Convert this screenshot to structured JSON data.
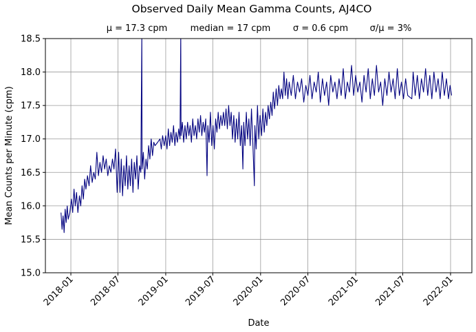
{
  "chart_data": {
    "type": "line",
    "title": "Observed Daily Mean Gamma Counts, AJ4CO",
    "subtitle": [
      "μ = 17.3 cpm",
      "median = 17 cpm",
      "σ = 0.6 cpm",
      "σ/μ = 3%"
    ],
    "xlabel": "Date",
    "ylabel": "Mean Counts per Minute (cpm)",
    "xlim": [
      "2017-09-25",
      "2022-03-24"
    ],
    "ylim": [
      15.0,
      18.5
    ],
    "xticks": [
      "2018-01",
      "2018-07",
      "2019-01",
      "2019-07",
      "2020-01",
      "2020-07",
      "2021-01",
      "2021-07",
      "2022-01"
    ],
    "yticks": [
      "15.0",
      "15.5",
      "16.0",
      "16.5",
      "17.0",
      "17.5",
      "18.0",
      "18.5"
    ],
    "grid": true,
    "line_color": "#00007f",
    "series": [
      {
        "points": [
          [
            "2017-11-24",
            15.9
          ],
          [
            "2017-11-28",
            15.65
          ],
          [
            "2017-12-02",
            15.85
          ],
          [
            "2017-12-06",
            15.6
          ],
          [
            "2017-12-10",
            15.95
          ],
          [
            "2017-12-14",
            15.75
          ],
          [
            "2017-12-18",
            16.0
          ],
          [
            "2017-12-22",
            15.8
          ],
          [
            "2017-12-28",
            15.9
          ],
          [
            "2018-01-03",
            16.1
          ],
          [
            "2018-01-08",
            15.9
          ],
          [
            "2018-01-13",
            16.25
          ],
          [
            "2018-01-18",
            16.0
          ],
          [
            "2018-01-23",
            16.2
          ],
          [
            "2018-01-28",
            15.9
          ],
          [
            "2018-02-03",
            16.15
          ],
          [
            "2018-02-08",
            16.0
          ],
          [
            "2018-02-13",
            16.3
          ],
          [
            "2018-02-18",
            16.1
          ],
          [
            "2018-02-23",
            16.4
          ],
          [
            "2018-02-28",
            16.25
          ],
          [
            "2018-03-06",
            16.45
          ],
          [
            "2018-03-12",
            16.3
          ],
          [
            "2018-03-18",
            16.6
          ],
          [
            "2018-03-24",
            16.35
          ],
          [
            "2018-03-30",
            16.5
          ],
          [
            "2018-04-05",
            16.4
          ],
          [
            "2018-04-11",
            16.8
          ],
          [
            "2018-04-17",
            16.45
          ],
          [
            "2018-04-23",
            16.65
          ],
          [
            "2018-04-29",
            16.5
          ],
          [
            "2018-05-05",
            16.75
          ],
          [
            "2018-05-11",
            16.55
          ],
          [
            "2018-05-17",
            16.7
          ],
          [
            "2018-05-23",
            16.45
          ],
          [
            "2018-05-29",
            16.6
          ],
          [
            "2018-06-04",
            16.5
          ],
          [
            "2018-06-10",
            16.7
          ],
          [
            "2018-06-16",
            16.55
          ],
          [
            "2018-06-22",
            16.85
          ],
          [
            "2018-06-28",
            16.2
          ],
          [
            "2018-07-04",
            16.8
          ],
          [
            "2018-07-09",
            16.2
          ],
          [
            "2018-07-14",
            16.7
          ],
          [
            "2018-07-19",
            16.15
          ],
          [
            "2018-07-24",
            16.6
          ],
          [
            "2018-07-29",
            16.3
          ],
          [
            "2018-08-03",
            16.75
          ],
          [
            "2018-08-08",
            16.25
          ],
          [
            "2018-08-13",
            16.6
          ],
          [
            "2018-08-18",
            16.3
          ],
          [
            "2018-08-23",
            16.7
          ],
          [
            "2018-08-28",
            16.2
          ],
          [
            "2018-09-02",
            16.65
          ],
          [
            "2018-09-07",
            16.4
          ],
          [
            "2018-09-12",
            16.75
          ],
          [
            "2018-09-17",
            16.25
          ],
          [
            "2018-09-22",
            16.6
          ],
          [
            "2018-09-27",
            16.5
          ],
          [
            "2018-10-01",
            18.6
          ],
          [
            "2018-10-02",
            16.55
          ],
          [
            "2018-10-07",
            16.8
          ],
          [
            "2018-10-12",
            16.4
          ],
          [
            "2018-10-17",
            16.7
          ],
          [
            "2018-10-22",
            16.55
          ],
          [
            "2018-10-27",
            16.9
          ],
          [
            "2018-11-01",
            16.7
          ],
          [
            "2018-11-06",
            17.0
          ],
          [
            "2018-11-11",
            16.75
          ],
          [
            "2018-11-16",
            16.95
          ],
          [
            "2018-11-21",
            16.9
          ],
          [
            "2018-12-01",
            16.95
          ],
          [
            "2018-12-10",
            17.0
          ],
          [
            "2018-12-15",
            16.85
          ],
          [
            "2018-12-20",
            17.05
          ],
          [
            "2018-12-26",
            16.9
          ],
          [
            "2019-01-01",
            17.05
          ],
          [
            "2019-01-06",
            16.85
          ],
          [
            "2019-01-11",
            17.15
          ],
          [
            "2019-01-16",
            16.9
          ],
          [
            "2019-01-21",
            17.1
          ],
          [
            "2019-01-26",
            16.95
          ],
          [
            "2019-01-31",
            17.2
          ],
          [
            "2019-02-05",
            16.9
          ],
          [
            "2019-02-10",
            17.1
          ],
          [
            "2019-02-15",
            16.95
          ],
          [
            "2019-02-20",
            17.15
          ],
          [
            "2019-02-25",
            17.0
          ],
          [
            "2019-02-28",
            18.6
          ],
          [
            "2019-03-01",
            17.05
          ],
          [
            "2019-03-06",
            17.25
          ],
          [
            "2019-03-11",
            16.95
          ],
          [
            "2019-03-16",
            17.2
          ],
          [
            "2019-03-21",
            17.0
          ],
          [
            "2019-03-26",
            17.25
          ],
          [
            "2019-03-31",
            17.05
          ],
          [
            "2019-04-05",
            17.2
          ],
          [
            "2019-04-10",
            16.95
          ],
          [
            "2019-04-15",
            17.3
          ],
          [
            "2019-04-20",
            17.05
          ],
          [
            "2019-04-25",
            17.2
          ],
          [
            "2019-04-30",
            17.0
          ],
          [
            "2019-05-05",
            17.3
          ],
          [
            "2019-05-10",
            17.1
          ],
          [
            "2019-05-15",
            17.35
          ],
          [
            "2019-05-20",
            17.05
          ],
          [
            "2019-05-25",
            17.25
          ],
          [
            "2019-05-30",
            17.1
          ],
          [
            "2019-06-04",
            17.3
          ],
          [
            "2019-06-09",
            16.45
          ],
          [
            "2019-06-12",
            17.2
          ],
          [
            "2019-06-17",
            16.95
          ],
          [
            "2019-06-22",
            17.4
          ],
          [
            "2019-06-27",
            16.9
          ],
          [
            "2019-07-02",
            17.2
          ],
          [
            "2019-07-07",
            16.85
          ],
          [
            "2019-07-12",
            17.3
          ],
          [
            "2019-07-17",
            17.1
          ],
          [
            "2019-07-22",
            17.4
          ],
          [
            "2019-07-27",
            17.15
          ],
          [
            "2019-08-01",
            17.35
          ],
          [
            "2019-08-06",
            17.2
          ],
          [
            "2019-08-11",
            17.4
          ],
          [
            "2019-08-16",
            17.2
          ],
          [
            "2019-08-21",
            17.45
          ],
          [
            "2019-08-26",
            17.15
          ],
          [
            "2019-08-31",
            17.5
          ],
          [
            "2019-09-05",
            17.2
          ],
          [
            "2019-09-10",
            17.4
          ],
          [
            "2019-09-15",
            17.0
          ],
          [
            "2019-09-20",
            17.35
          ],
          [
            "2019-09-25",
            16.95
          ],
          [
            "2019-09-30",
            17.3
          ],
          [
            "2019-10-05",
            17.0
          ],
          [
            "2019-10-10",
            17.4
          ],
          [
            "2019-10-15",
            16.9
          ],
          [
            "2019-10-20",
            17.2
          ],
          [
            "2019-10-25",
            16.55
          ],
          [
            "2019-10-28",
            17.25
          ],
          [
            "2019-11-02",
            16.9
          ],
          [
            "2019-11-07",
            17.4
          ],
          [
            "2019-11-12",
            17.0
          ],
          [
            "2019-11-17",
            17.3
          ],
          [
            "2019-11-22",
            16.9
          ],
          [
            "2019-11-27",
            17.45
          ],
          [
            "2019-12-02",
            16.95
          ],
          [
            "2019-12-08",
            16.3
          ],
          [
            "2019-12-10",
            17.2
          ],
          [
            "2019-12-15",
            16.85
          ],
          [
            "2019-12-20",
            17.5
          ],
          [
            "2019-12-25",
            17.0
          ],
          [
            "2019-12-30",
            17.35
          ],
          [
            "2020-01-05",
            17.05
          ],
          [
            "2020-01-10",
            17.45
          ],
          [
            "2020-01-15",
            17.1
          ],
          [
            "2020-01-20",
            17.4
          ],
          [
            "2020-01-25",
            17.2
          ],
          [
            "2020-01-30",
            17.5
          ],
          [
            "2020-02-04",
            17.3
          ],
          [
            "2020-02-09",
            17.55
          ],
          [
            "2020-02-14",
            17.35
          ],
          [
            "2020-02-19",
            17.7
          ],
          [
            "2020-02-24",
            17.45
          ],
          [
            "2020-03-01",
            17.75
          ],
          [
            "2020-03-06",
            17.5
          ],
          [
            "2020-03-11",
            17.8
          ],
          [
            "2020-03-16",
            17.6
          ],
          [
            "2020-03-21",
            17.75
          ],
          [
            "2020-03-26",
            17.6
          ],
          [
            "2020-03-31",
            18.0
          ],
          [
            "2020-04-05",
            17.65
          ],
          [
            "2020-04-10",
            17.9
          ],
          [
            "2020-04-15",
            17.6
          ],
          [
            "2020-04-20",
            17.85
          ],
          [
            "2020-04-28",
            17.65
          ],
          [
            "2020-05-06",
            17.95
          ],
          [
            "2020-05-14",
            17.6
          ],
          [
            "2020-05-22",
            17.85
          ],
          [
            "2020-05-30",
            17.7
          ],
          [
            "2020-06-07",
            17.9
          ],
          [
            "2020-06-15",
            17.55
          ],
          [
            "2020-06-23",
            17.8
          ],
          [
            "2020-07-01",
            17.65
          ],
          [
            "2020-07-09",
            17.95
          ],
          [
            "2020-07-17",
            17.6
          ],
          [
            "2020-07-25",
            17.85
          ],
          [
            "2020-08-02",
            17.7
          ],
          [
            "2020-08-10",
            18.0
          ],
          [
            "2020-08-18",
            17.55
          ],
          [
            "2020-08-26",
            17.9
          ],
          [
            "2020-09-03",
            17.65
          ],
          [
            "2020-09-11",
            17.85
          ],
          [
            "2020-09-19",
            17.5
          ],
          [
            "2020-09-27",
            17.95
          ],
          [
            "2020-10-05",
            17.7
          ],
          [
            "2020-10-13",
            17.85
          ],
          [
            "2020-10-21",
            17.6
          ],
          [
            "2020-10-29",
            17.9
          ],
          [
            "2020-11-06",
            17.65
          ],
          [
            "2020-11-14",
            18.05
          ],
          [
            "2020-11-22",
            17.6
          ],
          [
            "2020-11-30",
            17.85
          ],
          [
            "2020-12-08",
            17.7
          ],
          [
            "2020-12-16",
            18.1
          ],
          [
            "2020-12-24",
            17.65
          ],
          [
            "2021-01-01",
            17.95
          ],
          [
            "2021-01-09",
            17.7
          ],
          [
            "2021-01-17",
            17.85
          ],
          [
            "2021-01-25",
            17.55
          ],
          [
            "2021-02-02",
            17.95
          ],
          [
            "2021-02-10",
            17.7
          ],
          [
            "2021-02-18",
            18.05
          ],
          [
            "2021-02-26",
            17.6
          ],
          [
            "2021-03-06",
            17.9
          ],
          [
            "2021-03-14",
            17.65
          ],
          [
            "2021-03-22",
            18.1
          ],
          [
            "2021-03-30",
            17.7
          ],
          [
            "2021-04-07",
            17.85
          ],
          [
            "2021-04-15",
            17.5
          ],
          [
            "2021-04-23",
            17.9
          ],
          [
            "2021-05-01",
            17.65
          ],
          [
            "2021-05-09",
            18.0
          ],
          [
            "2021-05-17",
            17.7
          ],
          [
            "2021-05-25",
            17.9
          ],
          [
            "2021-06-02",
            17.6
          ],
          [
            "2021-06-10",
            18.05
          ],
          [
            "2021-06-18",
            17.65
          ],
          [
            "2021-06-26",
            17.85
          ],
          [
            "2021-07-04",
            17.6
          ],
          [
            "2021-07-12",
            17.9
          ],
          [
            "2021-07-20",
            17.65
          ],
          [
            "2021-08-05",
            17.6
          ],
          [
            "2021-08-10",
            18.0
          ],
          [
            "2021-08-18",
            17.65
          ],
          [
            "2021-08-26",
            17.95
          ],
          [
            "2021-09-03",
            17.6
          ],
          [
            "2021-09-11",
            17.9
          ],
          [
            "2021-09-19",
            17.7
          ],
          [
            "2021-09-27",
            18.05
          ],
          [
            "2021-10-05",
            17.65
          ],
          [
            "2021-10-13",
            17.95
          ],
          [
            "2021-10-21",
            17.6
          ],
          [
            "2021-10-29",
            18.0
          ],
          [
            "2021-11-06",
            17.7
          ],
          [
            "2021-11-14",
            17.9
          ],
          [
            "2021-11-22",
            17.6
          ],
          [
            "2021-11-30",
            18.0
          ],
          [
            "2021-12-08",
            17.65
          ],
          [
            "2021-12-16",
            17.9
          ],
          [
            "2021-12-24",
            17.6
          ],
          [
            "2021-12-30",
            17.8
          ],
          [
            "2022-01-05",
            17.65
          ]
        ]
      }
    ]
  }
}
